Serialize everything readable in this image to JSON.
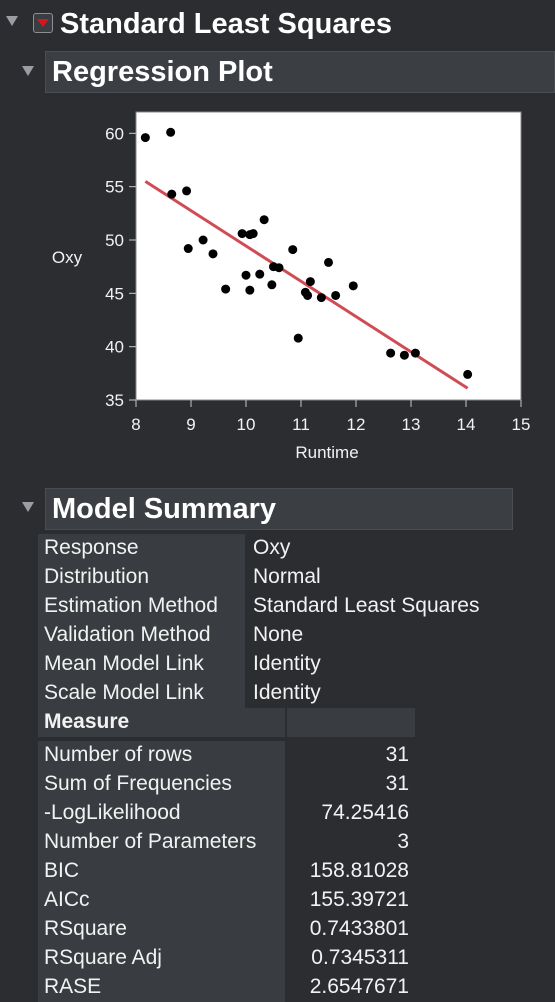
{
  "headers": {
    "report": "Standard Least Squares",
    "regression_plot": "Regression Plot",
    "model_summary": "Model Summary"
  },
  "chart_data": {
    "type": "scatter",
    "title": "",
    "xlabel": "Runtime",
    "ylabel": "Oxy",
    "xlim": [
      8,
      15
    ],
    "ylim": [
      35,
      62
    ],
    "xticks": [
      8,
      9,
      10,
      11,
      12,
      13,
      14,
      15
    ],
    "yticks": [
      35,
      40,
      45,
      50,
      55,
      60
    ],
    "grid": false,
    "legend": "none",
    "point_color": "#000000",
    "line_color": "#d14b55",
    "points": [
      [
        8.17,
        59.6
      ],
      [
        8.63,
        60.1
      ],
      [
        8.65,
        54.3
      ],
      [
        8.92,
        54.6
      ],
      [
        8.95,
        49.2
      ],
      [
        9.22,
        50.0
      ],
      [
        9.4,
        48.7
      ],
      [
        9.63,
        45.4
      ],
      [
        9.93,
        50.6
      ],
      [
        10.0,
        46.7
      ],
      [
        10.07,
        45.3
      ],
      [
        10.07,
        50.5
      ],
      [
        10.13,
        50.6
      ],
      [
        10.25,
        46.8
      ],
      [
        10.33,
        51.9
      ],
      [
        10.47,
        45.8
      ],
      [
        10.5,
        47.5
      ],
      [
        10.6,
        47.4
      ],
      [
        10.85,
        49.1
      ],
      [
        10.95,
        40.8
      ],
      [
        11.08,
        45.1
      ],
      [
        11.12,
        44.8
      ],
      [
        11.17,
        46.1
      ],
      [
        11.37,
        44.6
      ],
      [
        11.5,
        47.9
      ],
      [
        11.63,
        44.8
      ],
      [
        11.95,
        45.7
      ],
      [
        12.63,
        39.4
      ],
      [
        12.88,
        39.2
      ],
      [
        13.08,
        39.4
      ],
      [
        14.03,
        37.4
      ]
    ],
    "fit_line": {
      "x": [
        8.17,
        14.03
      ],
      "y": [
        55.5,
        36.1
      ]
    }
  },
  "summary": {
    "rows": [
      {
        "label": "Response",
        "value": "Oxy"
      },
      {
        "label": "Distribution",
        "value": "Normal"
      },
      {
        "label": "Estimation Method",
        "value": "Standard Least Squares"
      },
      {
        "label": "Validation Method",
        "value": "None"
      },
      {
        "label": "Mean Model Link",
        "value": "Identity"
      },
      {
        "label": "Scale Model Link",
        "value": "Identity"
      }
    ]
  },
  "measures": {
    "header": "Measure",
    "rows": [
      {
        "label": "Number of rows",
        "value": "31"
      },
      {
        "label": "Sum of Frequencies",
        "value": "31"
      },
      {
        "label": "-LogLikelihood",
        "value": "74.25416"
      },
      {
        "label": "Number of Parameters",
        "value": "3"
      },
      {
        "label": "BIC",
        "value": "158.81028"
      },
      {
        "label": "AICc",
        "value": "155.39721"
      },
      {
        "label": "RSquare",
        "value": "0.7433801"
      },
      {
        "label": "RSquare Adj",
        "value": "0.7345311"
      },
      {
        "label": "RASE",
        "value": "2.6547671"
      }
    ]
  }
}
